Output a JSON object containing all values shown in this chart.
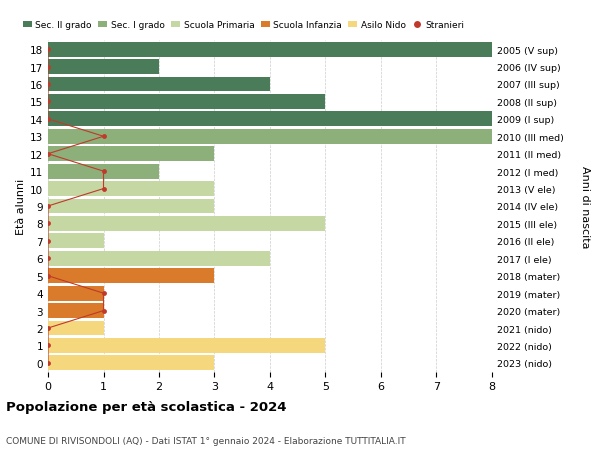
{
  "ages": [
    18,
    17,
    16,
    15,
    14,
    13,
    12,
    11,
    10,
    9,
    8,
    7,
    6,
    5,
    4,
    3,
    2,
    1,
    0
  ],
  "years": [
    "2005 (V sup)",
    "2006 (IV sup)",
    "2007 (III sup)",
    "2008 (II sup)",
    "2009 (I sup)",
    "2010 (III med)",
    "2011 (II med)",
    "2012 (I med)",
    "2013 (V ele)",
    "2014 (IV ele)",
    "2015 (III ele)",
    "2016 (II ele)",
    "2017 (I ele)",
    "2018 (mater)",
    "2019 (mater)",
    "2020 (mater)",
    "2021 (nido)",
    "2022 (nido)",
    "2023 (nido)"
  ],
  "bar_values": [
    8,
    2,
    4,
    5,
    8,
    8,
    3,
    2,
    3,
    3,
    5,
    1,
    4,
    3,
    1,
    1,
    1,
    5,
    3
  ],
  "bar_colors": [
    "#4a7c59",
    "#4a7c59",
    "#4a7c59",
    "#4a7c59",
    "#4a7c59",
    "#8db07a",
    "#8db07a",
    "#8db07a",
    "#c5d8a4",
    "#c5d8a4",
    "#c5d8a4",
    "#c5d8a4",
    "#c5d8a4",
    "#d97b2a",
    "#d97b2a",
    "#d97b2a",
    "#f5d87e",
    "#f5d87e",
    "#f5d87e"
  ],
  "stranieri_x": [
    0,
    0,
    0,
    0,
    0,
    1,
    0,
    1,
    1,
    0,
    0,
    0,
    0,
    0,
    1,
    1,
    0,
    0,
    0
  ],
  "legend_labels": [
    "Sec. II grado",
    "Sec. I grado",
    "Scuola Primaria",
    "Scuola Infanzia",
    "Asilo Nido",
    "Stranieri"
  ],
  "legend_colors": [
    "#4a7c59",
    "#8db07a",
    "#c5d8a4",
    "#d97b2a",
    "#f5d87e",
    "#c0392b"
  ],
  "ylabel": "Età alunni",
  "ylabel_right": "Anni di nascita",
  "title": "Popolazione per età scolastica - 2024",
  "subtitle": "COMUNE DI RIVISONDOLI (AQ) - Dati ISTAT 1° gennaio 2024 - Elaborazione TUTTITALIA.IT",
  "xlim": [
    0,
    8
  ],
  "background_color": "#ffffff",
  "grid_color": "#cccccc",
  "stranieri_color": "#c0392b"
}
